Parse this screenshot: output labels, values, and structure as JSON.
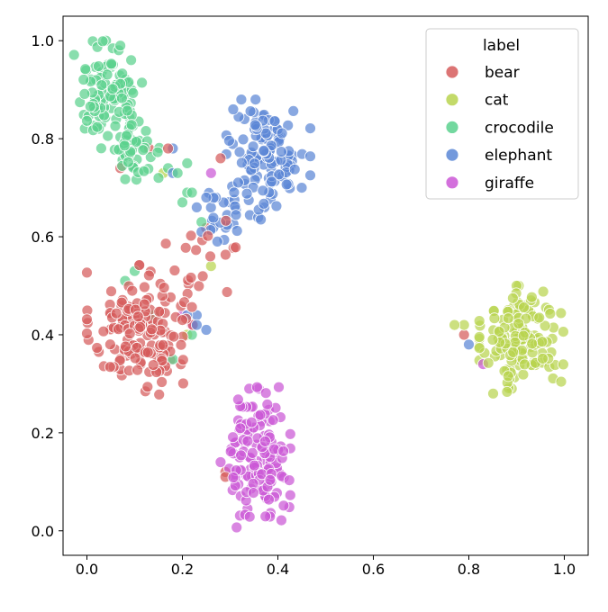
{
  "chart_data": {
    "type": "scatter",
    "title": "",
    "xlabel": "",
    "ylabel": "",
    "xlim": [
      -0.05,
      1.05
    ],
    "ylim": [
      -0.05,
      1.05
    ],
    "xticks": [
      "0.0",
      "0.2",
      "0.4",
      "0.6",
      "0.8",
      "1.0"
    ],
    "yticks": [
      "0.0",
      "0.2",
      "0.4",
      "0.6",
      "0.8",
      "1.0"
    ],
    "grid": false,
    "legend": {
      "title": "label",
      "position": "top-right"
    },
    "series": [
      {
        "name": "bear",
        "color": "#d65c5c",
        "clusters": [
          {
            "cx": 0.11,
            "cy": 0.41,
            "sx": 0.05,
            "sy": 0.06,
            "n": 150
          },
          {
            "cx": 0.24,
            "cy": 0.55,
            "sx": 0.05,
            "sy": 0.07,
            "n": 22
          }
        ],
        "points": [
          [
            0.17,
            0.78
          ],
          [
            0.07,
            0.74
          ],
          [
            0.28,
            0.76
          ],
          [
            0.29,
            0.12
          ],
          [
            0.29,
            0.11
          ],
          [
            0.79,
            0.4
          ],
          [
            0.13,
            0.78
          ],
          [
            0.2,
            0.43
          ]
        ]
      },
      {
        "name": "cat",
        "color": "#b8d44f",
        "clusters": [
          {
            "cx": 0.91,
            "cy": 0.39,
            "sx": 0.04,
            "sy": 0.05,
            "n": 150
          }
        ],
        "points": [
          [
            0.77,
            0.42
          ],
          [
            0.79,
            0.42
          ],
          [
            0.26,
            0.54
          ],
          [
            0.16,
            0.73
          ],
          [
            0.21,
            0.4
          ],
          [
            0.89,
            0.29
          ],
          [
            0.9,
            0.5
          ]
        ]
      },
      {
        "name": "crocodile",
        "color": "#5bd18e",
        "clusters": [
          {
            "cx": 0.05,
            "cy": 0.9,
            "sx": 0.035,
            "sy": 0.045,
            "n": 95
          },
          {
            "cx": 0.09,
            "cy": 0.78,
            "sx": 0.035,
            "sy": 0.035,
            "n": 50
          }
        ],
        "points": [
          [
            0.04,
            1.0
          ],
          [
            0.07,
            0.99
          ],
          [
            0.17,
            0.74
          ],
          [
            0.19,
            0.73
          ],
          [
            0.21,
            0.75
          ],
          [
            0.21,
            0.69
          ],
          [
            0.2,
            0.67
          ],
          [
            0.22,
            0.69
          ],
          [
            0.24,
            0.63
          ],
          [
            0.18,
            0.35
          ],
          [
            0.1,
            0.53
          ],
          [
            0.08,
            0.51
          ],
          [
            0.14,
            0.44
          ],
          [
            0.15,
            0.72
          ],
          [
            0.22,
            0.4
          ]
        ]
      },
      {
        "name": "elephant",
        "color": "#5b87d6",
        "clusters": [
          {
            "cx": 0.38,
            "cy": 0.77,
            "sx": 0.04,
            "sy": 0.05,
            "n": 115
          },
          {
            "cx": 0.3,
            "cy": 0.65,
            "sx": 0.035,
            "sy": 0.03,
            "n": 28
          }
        ],
        "points": [
          [
            0.18,
            0.78
          ],
          [
            0.21,
            0.44
          ],
          [
            0.23,
            0.44
          ],
          [
            0.23,
            0.42
          ],
          [
            0.25,
            0.41
          ],
          [
            0.18,
            0.73
          ],
          [
            0.23,
            0.66
          ],
          [
            0.24,
            0.61
          ],
          [
            0.8,
            0.38
          ],
          [
            0.25,
            0.68
          ],
          [
            0.27,
            0.68
          ],
          [
            0.33,
            0.84
          ],
          [
            0.45,
            0.7
          ]
        ]
      },
      {
        "name": "giraffe",
        "color": "#cb57d6",
        "clusters": [
          {
            "cx": 0.36,
            "cy": 0.15,
            "sx": 0.03,
            "sy": 0.065,
            "n": 135
          }
        ],
        "points": [
          [
            0.26,
            0.73
          ],
          [
            0.28,
            0.14
          ],
          [
            0.83,
            0.34
          ],
          [
            0.22,
            0.42
          ],
          [
            0.2,
            0.44
          ],
          [
            0.34,
            0.29
          ],
          [
            0.36,
            0.29
          ]
        ]
      }
    ]
  }
}
